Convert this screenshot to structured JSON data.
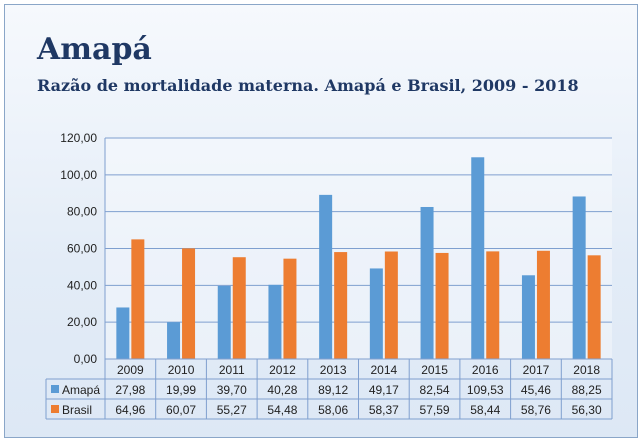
{
  "title": "Amapá",
  "subtitle": "Razão de mortalidade materna. Amapá e Brasil, 2009 - 2018",
  "colors": {
    "amapa": "#5b9bd5",
    "brasil": "#ed7d31",
    "grid": "#7f9fcf",
    "title": "#1f3864"
  },
  "chart_data": {
    "type": "bar",
    "categories": [
      "2009",
      "2010",
      "2011",
      "2012",
      "2013",
      "2014",
      "2015",
      "2016",
      "2017",
      "2018"
    ],
    "series": [
      {
        "name": "Amapá",
        "values": [
          27.98,
          19.99,
          39.7,
          40.28,
          89.12,
          49.17,
          82.54,
          109.53,
          45.46,
          88.25
        ],
        "labels": [
          "27,98",
          "19,99",
          "39,70",
          "40,28",
          "89,12",
          "49,17",
          "82,54",
          "109,53",
          "45,46",
          "88,25"
        ]
      },
      {
        "name": "Brasil",
        "values": [
          64.96,
          60.07,
          55.27,
          54.48,
          58.06,
          58.37,
          57.59,
          58.44,
          58.76,
          56.3
        ],
        "labels": [
          "64,96",
          "60,07",
          "55,27",
          "54,48",
          "58,06",
          "58,37",
          "57,59",
          "58,44",
          "58,76",
          "56,30"
        ]
      }
    ],
    "ylim": [
      0,
      120
    ],
    "yticks": [
      0,
      20,
      40,
      60,
      80,
      100,
      120
    ],
    "ytick_labels": [
      "0,00",
      "20,00",
      "40,00",
      "60,00",
      "80,00",
      "100,00",
      "120,00"
    ],
    "grid": true,
    "legend": "data-table"
  }
}
